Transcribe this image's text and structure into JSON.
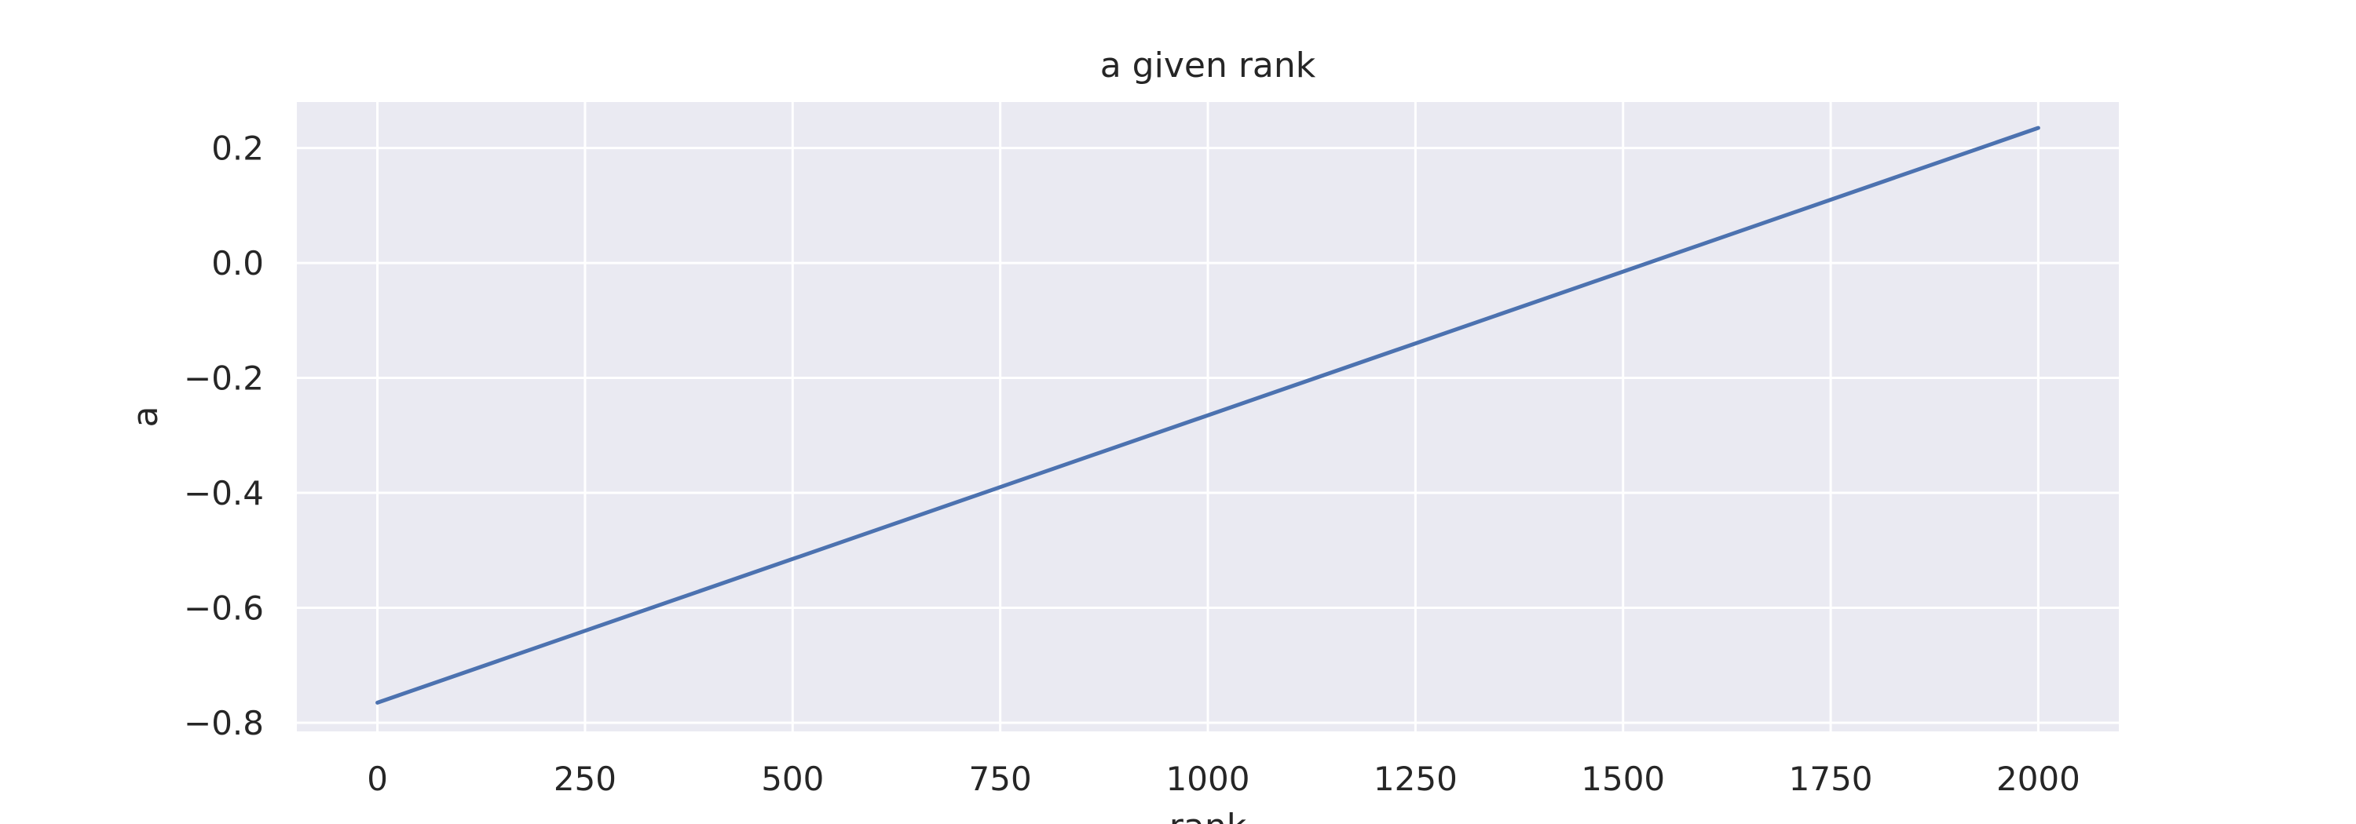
{
  "chart_data": {
    "type": "line",
    "title": "a given rank",
    "xlabel": "rank",
    "ylabel": "a",
    "xlim": [
      -97,
      2097
    ],
    "ylim": [
      -0.815,
      0.28
    ],
    "x_ticks": [
      0,
      250,
      500,
      750,
      1000,
      1250,
      1500,
      1750,
      2000
    ],
    "y_ticks": [
      -0.8,
      -0.6,
      -0.4,
      -0.2,
      0.0,
      0.2
    ],
    "x_tick_labels": [
      "0",
      "250",
      "500",
      "750",
      "1000",
      "1250",
      "1500",
      "1750",
      "2000"
    ],
    "y_tick_labels": [
      "−0.8",
      "−0.6",
      "−0.4",
      "−0.2",
      "0.0",
      "0.2"
    ],
    "grid": true,
    "legend": "none",
    "series": [
      {
        "x": [
          0,
          250,
          500,
          750,
          1000,
          1250,
          1500,
          1750,
          2000
        ],
        "y": [
          -0.765,
          -0.64,
          -0.515,
          -0.39,
          -0.265,
          -0.14,
          -0.015,
          0.11,
          0.235
        ]
      }
    ],
    "colors": {
      "background": "#eaeaf2",
      "grid": "#ffffff",
      "line": "#4c72b0",
      "text": "#262626"
    }
  }
}
